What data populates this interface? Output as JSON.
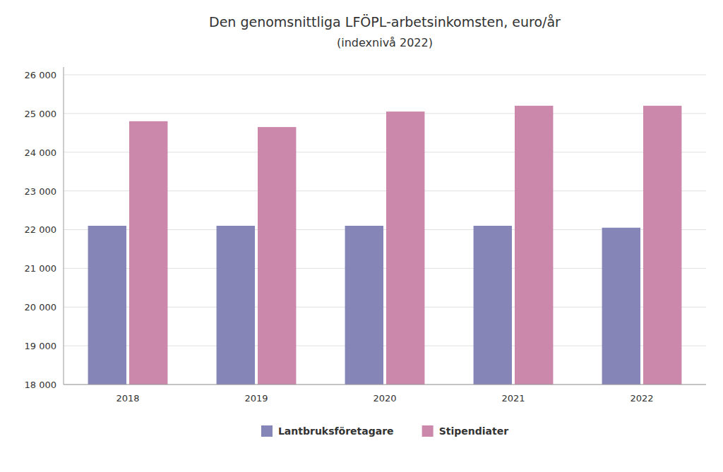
{
  "chart_data": {
    "type": "bar",
    "title": "Den genomsnittliga LFÖPL-arbetsinkomsten, euro/år",
    "subtitle": "(indexnivå 2022)",
    "categories": [
      "2018",
      "2019",
      "2020",
      "2021",
      "2022"
    ],
    "series": [
      {
        "name": "Lantbruksföretagare",
        "color": "#8585b8",
        "values": [
          22100,
          22100,
          22100,
          22100,
          22050
        ]
      },
      {
        "name": "Stipendiater",
        "color": "#cc88aa",
        "values": [
          24800,
          24650,
          25050,
          25200,
          25200
        ]
      }
    ],
    "ylim": [
      18000,
      26200
    ],
    "yticks": [
      {
        "value": 18000,
        "label": "18 000"
      },
      {
        "value": 19000,
        "label": "19 000"
      },
      {
        "value": 20000,
        "label": "20 000"
      },
      {
        "value": 21000,
        "label": "21 000"
      },
      {
        "value": 22000,
        "label": "22 000"
      },
      {
        "value": 23000,
        "label": "23 000"
      },
      {
        "value": 24000,
        "label": "24 000"
      },
      {
        "value": 25000,
        "label": "25 000"
      },
      {
        "value": 26000,
        "label": "26 000"
      }
    ],
    "grid": true,
    "legend": "bottom"
  }
}
